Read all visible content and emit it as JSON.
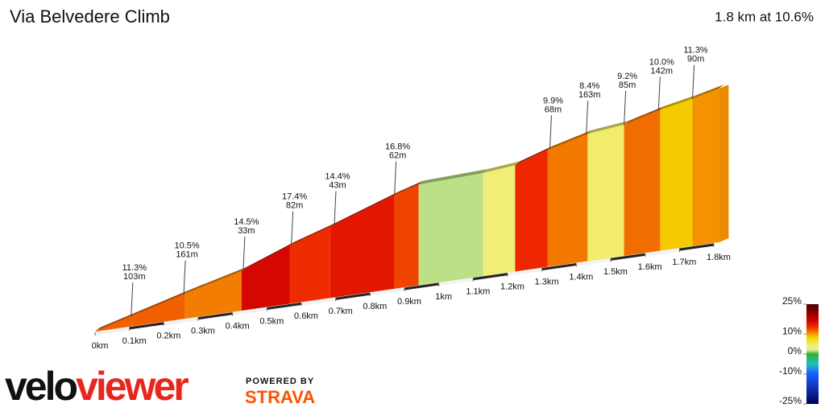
{
  "chart_data": {
    "type": "profile",
    "title": "Via Belvedere Climb",
    "subtitle": "1.8 km at 10.6%",
    "x": [
      0,
      0.11,
      0.262,
      0.426,
      0.567,
      0.684,
      0.871,
      0.941,
      1.129,
      1.222,
      1.316,
      1.433,
      1.539,
      1.644,
      1.738,
      1.815
    ],
    "values": [
      0,
      13,
      31,
      49,
      72,
      88,
      116,
      125,
      128,
      132,
      145,
      158,
      163,
      175,
      183,
      191
    ],
    "xlim": [
      0,
      1.8
    ],
    "xticks": [
      {
        "value": 0,
        "label": "0km"
      },
      {
        "value": 0.1,
        "label": "0.1km"
      },
      {
        "value": 0.2,
        "label": "0.2km"
      },
      {
        "value": 0.3,
        "label": "0.3km"
      },
      {
        "value": 0.4,
        "label": "0.4km"
      },
      {
        "value": 0.5,
        "label": "0.5km"
      },
      {
        "value": 0.6,
        "label": "0.6km"
      },
      {
        "value": 0.7,
        "label": "0.7km"
      },
      {
        "value": 0.8,
        "label": "0.8km"
      },
      {
        "value": 0.9,
        "label": "0.9km"
      },
      {
        "value": 1,
        "label": "1km"
      },
      {
        "value": 1.1,
        "label": "1.1km"
      },
      {
        "value": 1.2,
        "label": "1.2km"
      },
      {
        "value": 1.3,
        "label": "1.3km"
      },
      {
        "value": 1.4,
        "label": "1.4km"
      },
      {
        "value": 1.5,
        "label": "1.5km"
      },
      {
        "value": 1.6,
        "label": "1.6km"
      },
      {
        "value": 1.7,
        "label": "1.7km"
      },
      {
        "value": 1.8,
        "label": "1.8km"
      }
    ],
    "annotations": {
      "x": [
        0.105,
        0.258,
        0.431,
        0.571,
        0.696,
        0.871,
        1.323,
        1.429,
        1.539,
        1.639,
        1.738
      ],
      "grades": [
        11.3,
        10.5,
        14.5,
        17.4,
        14.4,
        16.8,
        9.9,
        8.4,
        9.2,
        10.0,
        11.3
      ],
      "grade_labels": [
        "11.3%",
        "10.5%",
        "14.5%",
        "17.4%",
        "14.4%",
        "16.8%",
        "9.9%",
        "8.4%",
        "9.2%",
        "10.0%",
        "11.3%"
      ],
      "lengths": [
        103,
        161,
        33,
        82,
        43,
        62,
        68,
        163,
        85,
        142,
        90
      ],
      "length_labels": [
        "103m",
        "161m",
        "33m",
        "82m",
        "43m",
        "62m",
        "68m",
        "163m",
        "85m",
        "142m",
        "90m"
      ]
    },
    "colorscale": {
      "lim": [
        -25,
        25
      ],
      "ticks": [
        {
          "value": 25,
          "label": "25%"
        },
        {
          "value": 10,
          "label": "10%"
        },
        {
          "value": 0,
          "label": "0%"
        },
        {
          "value": -10,
          "label": "-10%"
        },
        {
          "value": -25,
          "label": "-25%"
        }
      ],
      "stops": [
        {
          "value": 25,
          "color": "#4a0000"
        },
        {
          "value": 17,
          "color": "#cc0000"
        },
        {
          "value": 14,
          "color": "#ee2200"
        },
        {
          "value": 11.5,
          "color": "#f26a00"
        },
        {
          "value": 10,
          "color": "#f5a000"
        },
        {
          "value": 8,
          "color": "#f5d800"
        },
        {
          "value": 4,
          "color": "#f0f080"
        },
        {
          "value": 2,
          "color": "#e0ec9a"
        },
        {
          "value": 0,
          "color": "#30b030"
        },
        {
          "value": -5,
          "color": "#20c0c0"
        },
        {
          "value": -10,
          "color": "#1a5cff"
        },
        {
          "value": -25,
          "color": "#00005a"
        }
      ]
    }
  },
  "branding": {
    "logo_parts": [
      "velo",
      "viewer"
    ],
    "powered_by": "POWERED BY",
    "strava": "STRAVA"
  }
}
